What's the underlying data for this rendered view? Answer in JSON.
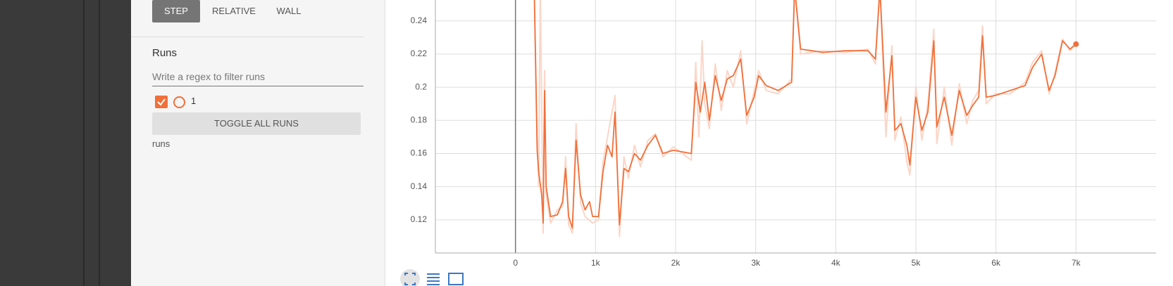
{
  "sidebar": {
    "horizontal_axis_options": [
      "STEP",
      "RELATIVE",
      "WALL"
    ],
    "runs_title": "Runs",
    "filter_placeholder": "Write a regex to filter runs",
    "runs": [
      "1"
    ],
    "toggle_button": "TOGGLE ALL RUNS",
    "footer": "runs"
  },
  "chart_data": {
    "type": "line",
    "xlim": [
      -1000,
      8000
    ],
    "ylim": [
      0.1,
      0.2526
    ],
    "xticks": [
      0,
      {
        "value": 1000,
        "label": "1k"
      },
      {
        "value": 2000,
        "label": "2k"
      },
      {
        "value": 3000,
        "label": "3k"
      },
      {
        "value": 4000,
        "label": "4k"
      },
      {
        "value": 5000,
        "label": "5k"
      },
      {
        "value": 6000,
        "label": "6k"
      },
      {
        "value": 7000,
        "label": "7k"
      }
    ],
    "yticks": [
      0.12,
      0.14,
      0.16,
      0.18,
      0.2,
      0.22,
      0.24
    ],
    "grid": true,
    "series": [
      {
        "name": "1",
        "color": "#fbd6c8",
        "x": [
          234,
          271,
          290,
          310,
          346,
          364,
          383,
          439,
          523,
          589,
          626,
          664,
          710,
          757,
          813,
          869,
          963,
          1037,
          1093,
          1150,
          1243,
          1299,
          1355,
          1411,
          1486,
          1561,
          1654,
          1748,
          1841,
          1972,
          2196,
          2252,
          2290,
          2330,
          2364,
          2421,
          2495,
          2570,
          2645,
          2720,
          2813,
          2888,
          2981,
          3037,
          3131,
          3280,
          3449,
          3486,
          3561,
          3841,
          4121,
          4402,
          4495,
          4551,
          4626,
          4701,
          4738,
          4813,
          4888,
          4925,
          5000,
          5075,
          5150,
          5224,
          5262,
          5355,
          5449,
          5542,
          5636,
          5710,
          5785,
          5832,
          5879,
          5991,
          6178,
          6364,
          6458,
          6570,
          6664,
          6738,
          6832,
          6925,
          7000
        ],
        "values": [
          0.26,
          0.17,
          0.14,
          0.26,
          0.112,
          0.21,
          0.135,
          0.118,
          0.126,
          0.128,
          0.158,
          0.117,
          0.112,
          0.178,
          0.13,
          0.122,
          0.118,
          0.12,
          0.155,
          0.17,
          0.195,
          0.11,
          0.158,
          0.145,
          0.165,
          0.152,
          0.168,
          0.172,
          0.158,
          0.164,
          0.156,
          0.215,
          0.17,
          0.228,
          0.19,
          0.175,
          0.214,
          0.186,
          0.21,
          0.2,
          0.222,
          0.178,
          0.198,
          0.21,
          0.198,
          0.196,
          0.205,
          0.26,
          0.22,
          0.222,
          0.221,
          0.223,
          0.214,
          0.26,
          0.17,
          0.225,
          0.168,
          0.182,
          0.155,
          0.147,
          0.2,
          0.168,
          0.19,
          0.235,
          0.166,
          0.2,
          0.165,
          0.202,
          0.178,
          0.192,
          0.198,
          0.237,
          0.19,
          0.196,
          0.196,
          0.203,
          0.215,
          0.222,
          0.196,
          0.209,
          0.229,
          0.222,
          0.226
        ]
      },
      {
        "name": "1",
        "color": "#f0703a",
        "x": [
          234,
          271,
          290,
          327,
          346,
          364,
          383,
          439,
          523,
          589,
          626,
          664,
          710,
          757,
          813,
          869,
          925,
          963,
          1037,
          1093,
          1150,
          1206,
          1243,
          1299,
          1355,
          1411,
          1486,
          1561,
          1654,
          1748,
          1841,
          1972,
          2196,
          2252,
          2308,
          2364,
          2421,
          2495,
          2570,
          2645,
          2720,
          2813,
          2888,
          2981,
          3037,
          3131,
          3280,
          3449,
          3486,
          3561,
          3841,
          4121,
          4402,
          4495,
          4551,
          4626,
          4701,
          4738,
          4813,
          4888,
          4925,
          5000,
          5075,
          5150,
          5224,
          5262,
          5355,
          5449,
          5542,
          5636,
          5710,
          5785,
          5832,
          5879,
          5991,
          6178,
          6364,
          6458,
          6570,
          6664,
          6738,
          6832,
          6925,
          7000
        ],
        "values": [
          0.26,
          0.162,
          0.149,
          0.135,
          0.118,
          0.198,
          0.14,
          0.122,
          0.123,
          0.131,
          0.151,
          0.122,
          0.115,
          0.168,
          0.135,
          0.126,
          0.131,
          0.122,
          0.122,
          0.149,
          0.165,
          0.158,
          0.185,
          0.117,
          0.151,
          0.149,
          0.16,
          0.156,
          0.165,
          0.171,
          0.16,
          0.162,
          0.16,
          0.203,
          0.185,
          0.203,
          0.18,
          0.207,
          0.192,
          0.205,
          0.207,
          0.217,
          0.183,
          0.194,
          0.207,
          0.201,
          0.198,
          0.203,
          0.26,
          0.223,
          0.221,
          0.222,
          0.222,
          0.217,
          0.26,
          0.185,
          0.219,
          0.174,
          0.178,
          0.165,
          0.153,
          0.194,
          0.174,
          0.185,
          0.228,
          0.176,
          0.194,
          0.171,
          0.198,
          0.183,
          0.189,
          0.194,
          0.231,
          0.194,
          0.195,
          0.198,
          0.201,
          0.212,
          0.22,
          0.198,
          0.207,
          0.228,
          0.223,
          0.226
        ]
      }
    ]
  }
}
